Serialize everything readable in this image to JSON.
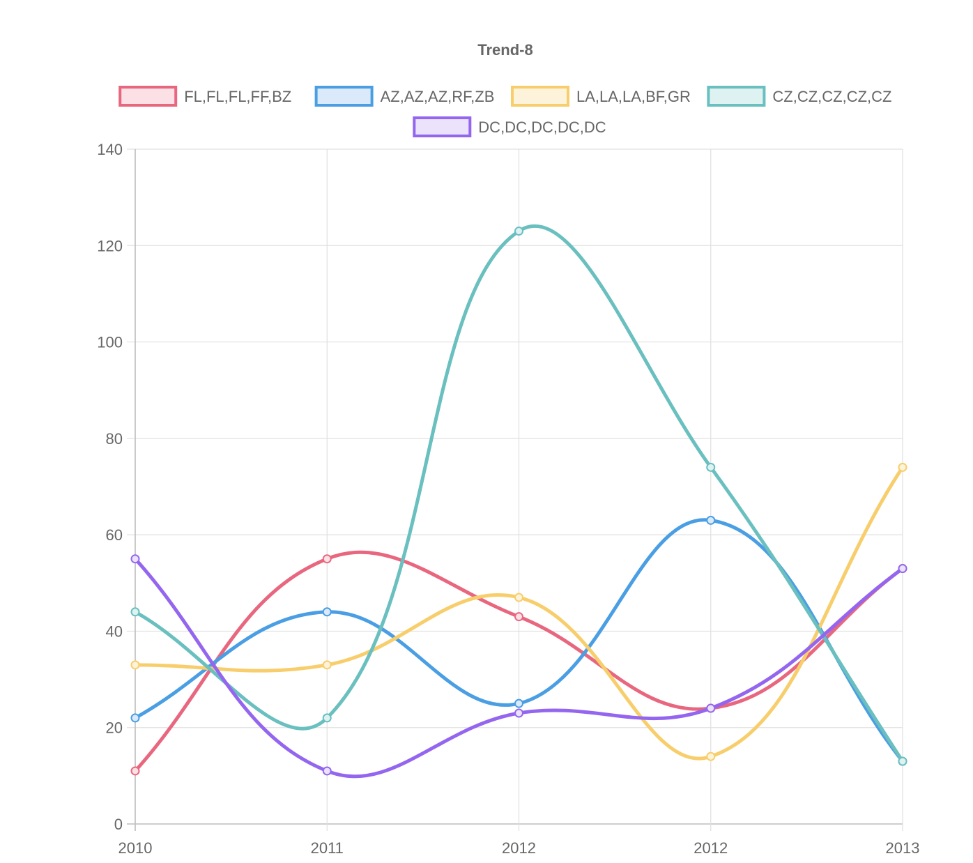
{
  "chart_data": {
    "type": "line",
    "title": "Trend-8",
    "xlabel": "",
    "ylabel": "",
    "categories": [
      "2010",
      "2011",
      "2012",
      "2012",
      "2013"
    ],
    "ylim": [
      0,
      140
    ],
    "yticks": [
      0,
      20,
      40,
      60,
      80,
      100,
      120,
      140
    ],
    "grid": true,
    "legend_position": "top",
    "series": [
      {
        "name": "FL,FL,FL,FF,BZ",
        "color": "#e8677f",
        "fill": "#fbe0e5",
        "values": [
          11,
          55,
          43,
          24,
          53
        ]
      },
      {
        "name": "AZ,AZ,AZ,RF,ZB",
        "color": "#4a9ee3",
        "fill": "#dbeafa",
        "values": [
          22,
          44,
          25,
          63,
          13
        ]
      },
      {
        "name": "LA,LA,LA,BF,GR",
        "color": "#f7ce6b",
        "fill": "#fdf3da",
        "values": [
          33,
          33,
          47,
          14,
          74
        ]
      },
      {
        "name": "CZ,CZ,CZ,CZ,CZ",
        "color": "#6abfbf",
        "fill": "#def2f2",
        "values": [
          44,
          22,
          123,
          74,
          13
        ]
      },
      {
        "name": "DC,DC,DC,DC,DC",
        "color": "#9466ef",
        "fill": "#ebe2fc",
        "values": [
          55,
          11,
          23,
          24,
          53
        ]
      }
    ]
  }
}
